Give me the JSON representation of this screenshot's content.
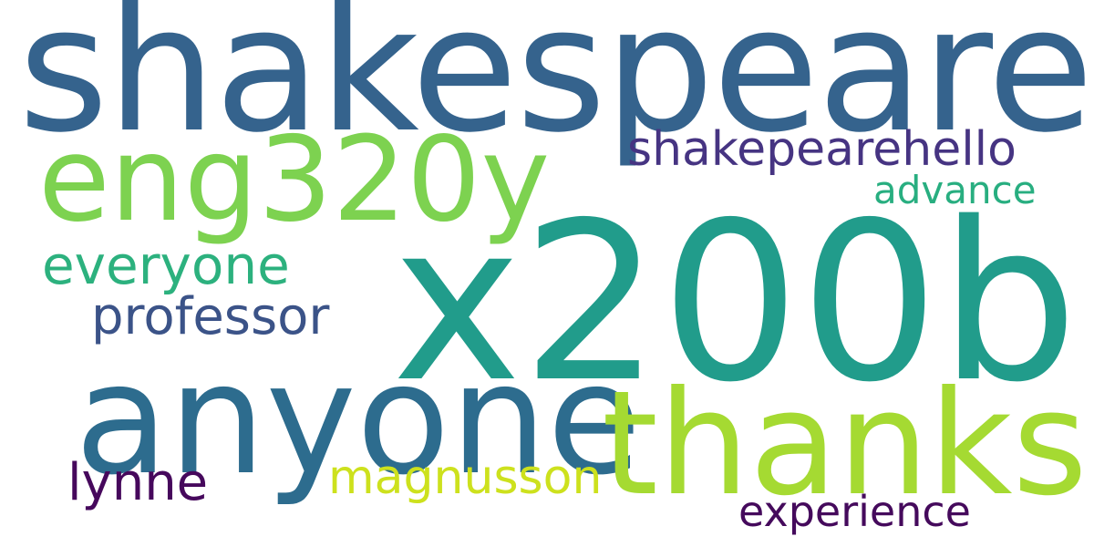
{
  "words": [
    {
      "text": "shakespeare",
      "color": "#35638d"
    },
    {
      "text": "x200b",
      "color": "#219c8b"
    },
    {
      "text": "anyone",
      "color": "#2d6c8e"
    },
    {
      "text": "thanks",
      "color": "#a5da32"
    },
    {
      "text": "eng320y",
      "color": "#7dd250"
    },
    {
      "text": "shakepearehello",
      "color": "#463482"
    },
    {
      "text": "advance",
      "color": "#28ae80"
    },
    {
      "text": "everyone",
      "color": "#2cb17e"
    },
    {
      "text": "professor",
      "color": "#3b5388"
    },
    {
      "text": "magnusson",
      "color": "#cde11d"
    },
    {
      "text": "lynne",
      "color": "#46085c"
    },
    {
      "text": "experience",
      "color": "#450a5c"
    }
  ]
}
